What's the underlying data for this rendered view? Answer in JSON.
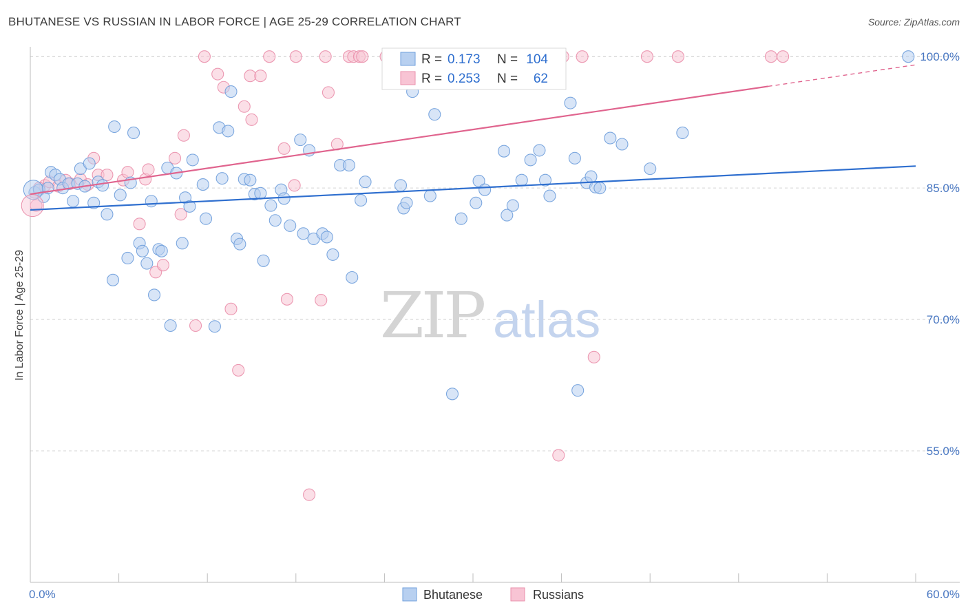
{
  "title": "BHUTANESE VS RUSSIAN IN LABOR FORCE | AGE 25-29 CORRELATION CHART",
  "source": "Source: ZipAtlas.com",
  "watermark": {
    "zip": "ZIP",
    "atlas": "atlas"
  },
  "colors": {
    "bhutanese_fill": "#b8d0f0",
    "bhutanese_stroke": "#6f9fdc",
    "bhutanese_line": "#2f6fcf",
    "russians_fill": "#f8c4d4",
    "russians_stroke": "#ea8fab",
    "russians_line": "#e0648e",
    "tick_text": "#4a78c2",
    "grid": "#d4d4d4"
  },
  "legend": {
    "rows": [
      {
        "r_label": "R =",
        "r_value": "0.173",
        "n_label": "N =",
        "n_value": "104"
      },
      {
        "r_label": "R =",
        "r_value": "0.253",
        "n_label": "N =",
        "n_value": "62"
      }
    ]
  },
  "chart_data": {
    "type": "scatter",
    "title": "BHUTANESE VS RUSSIAN IN LABOR FORCE | AGE 25-29 CORRELATION CHART",
    "xlabel": "",
    "ylabel": "In Labor Force | Age 25-29",
    "xlim": [
      0,
      60
    ],
    "ylim": [
      40,
      103
    ],
    "x_tick_labels": [
      "0.0%",
      "60.0%"
    ],
    "y_ticks": [
      55,
      70,
      85,
      100
    ],
    "y_tick_labels": [
      "55.0%",
      "70.0%",
      "85.0%",
      "100.0%"
    ],
    "grid": true,
    "legend_position": "top-center",
    "series": [
      {
        "name": "Bhutanese",
        "color": "#b8d0f0",
        "trend": {
          "x": [
            0,
            60
          ],
          "y": [
            82.5,
            87.5
          ]
        },
        "points": [
          [
            0.3,
            84.5
          ],
          [
            0.6,
            84.8
          ],
          [
            0.9,
            84.0
          ],
          [
            1.2,
            85.0
          ],
          [
            1.4,
            86.8
          ],
          [
            1.7,
            86.5
          ],
          [
            2.0,
            86.0
          ],
          [
            2.2,
            85.0
          ],
          [
            2.6,
            85.5
          ],
          [
            2.9,
            83.5
          ],
          [
            3.2,
            85.5
          ],
          [
            3.4,
            87.2
          ],
          [
            3.7,
            85.2
          ],
          [
            4.0,
            87.8
          ],
          [
            4.3,
            83.3
          ],
          [
            4.6,
            85.7
          ],
          [
            4.9,
            85.3
          ],
          [
            5.2,
            82.0
          ],
          [
            5.6,
            74.5
          ],
          [
            5.7,
            92.0
          ],
          [
            6.1,
            84.2
          ],
          [
            6.6,
            77.0
          ],
          [
            6.8,
            85.6
          ],
          [
            7.0,
            91.3
          ],
          [
            7.4,
            78.7
          ],
          [
            7.6,
            77.8
          ],
          [
            7.9,
            76.4
          ],
          [
            8.2,
            83.5
          ],
          [
            8.4,
            72.8
          ],
          [
            8.7,
            78.0
          ],
          [
            8.9,
            77.8
          ],
          [
            9.3,
            87.3
          ],
          [
            9.5,
            69.3
          ],
          [
            9.9,
            86.7
          ],
          [
            10.3,
            78.7
          ],
          [
            10.5,
            83.9
          ],
          [
            10.8,
            82.9
          ],
          [
            11.0,
            88.2
          ],
          [
            11.7,
            85.4
          ],
          [
            11.9,
            81.5
          ],
          [
            12.5,
            69.2
          ],
          [
            12.8,
            91.9
          ],
          [
            13.0,
            86.1
          ],
          [
            13.4,
            91.5
          ],
          [
            13.6,
            96.0
          ],
          [
            14.0,
            79.2
          ],
          [
            14.2,
            78.6
          ],
          [
            14.5,
            86.0
          ],
          [
            14.9,
            85.9
          ],
          [
            15.2,
            84.3
          ],
          [
            15.6,
            84.4
          ],
          [
            15.8,
            76.7
          ],
          [
            16.3,
            83.0
          ],
          [
            16.6,
            81.3
          ],
          [
            17.0,
            84.8
          ],
          [
            17.2,
            83.8
          ],
          [
            17.6,
            80.7
          ],
          [
            18.3,
            90.5
          ],
          [
            18.5,
            79.8
          ],
          [
            18.9,
            89.3
          ],
          [
            19.2,
            79.2
          ],
          [
            19.8,
            79.8
          ],
          [
            20.1,
            79.4
          ],
          [
            20.5,
            77.4
          ],
          [
            21.0,
            87.6
          ],
          [
            21.6,
            87.6
          ],
          [
            21.8,
            74.8
          ],
          [
            22.4,
            83.6
          ],
          [
            22.7,
            85.7
          ],
          [
            25.1,
            85.3
          ],
          [
            25.3,
            82.7
          ],
          [
            25.5,
            83.3
          ],
          [
            25.9,
            96.0
          ],
          [
            27.1,
            84.1
          ],
          [
            27.4,
            93.4
          ],
          [
            28.6,
            61.5
          ],
          [
            29.2,
            81.5
          ],
          [
            30.2,
            83.3
          ],
          [
            30.4,
            85.8
          ],
          [
            30.8,
            84.8
          ],
          [
            32.1,
            89.2
          ],
          [
            32.3,
            81.9
          ],
          [
            32.7,
            83.0
          ],
          [
            33.3,
            85.9
          ],
          [
            33.9,
            88.2
          ],
          [
            34.5,
            89.3
          ],
          [
            34.9,
            85.9
          ],
          [
            35.2,
            84.1
          ],
          [
            36.6,
            94.7
          ],
          [
            36.9,
            88.4
          ],
          [
            37.1,
            61.9
          ],
          [
            37.7,
            85.6
          ],
          [
            38.0,
            86.3
          ],
          [
            38.3,
            85.1
          ],
          [
            38.6,
            85.0
          ],
          [
            39.3,
            90.7
          ],
          [
            40.1,
            90.0
          ],
          [
            42.0,
            87.2
          ],
          [
            44.2,
            91.3
          ],
          [
            59.5,
            100.0
          ]
        ]
      },
      {
        "name": "Russians",
        "color": "#f8c4d4",
        "trend": {
          "x": [
            0,
            50
          ],
          "y": [
            84.3,
            96.6
          ]
        },
        "points": [
          [
            0.4,
            83.0
          ],
          [
            1.0,
            85.3
          ],
          [
            1.3,
            85.7
          ],
          [
            1.9,
            85.2
          ],
          [
            2.4,
            85.9
          ],
          [
            2.7,
            85.5
          ],
          [
            3.4,
            86.0
          ],
          [
            3.9,
            85.4
          ],
          [
            4.3,
            88.4
          ],
          [
            4.6,
            86.5
          ],
          [
            5.2,
            86.5
          ],
          [
            6.3,
            85.9
          ],
          [
            6.6,
            86.8
          ],
          [
            7.4,
            80.9
          ],
          [
            7.8,
            86.0
          ],
          [
            8.0,
            87.1
          ],
          [
            8.5,
            75.4
          ],
          [
            9.0,
            76.2
          ],
          [
            9.8,
            88.4
          ],
          [
            10.2,
            82.0
          ],
          [
            10.4,
            91.0
          ],
          [
            11.2,
            69.3
          ],
          [
            11.8,
            100.0
          ],
          [
            12.7,
            98.0
          ],
          [
            13.1,
            96.5
          ],
          [
            13.6,
            71.2
          ],
          [
            14.1,
            64.2
          ],
          [
            14.5,
            94.3
          ],
          [
            14.9,
            97.8
          ],
          [
            15.0,
            92.8
          ],
          [
            15.6,
            97.8
          ],
          [
            16.2,
            100.0
          ],
          [
            17.2,
            89.5
          ],
          [
            17.4,
            72.3
          ],
          [
            17.9,
            85.3
          ],
          [
            18.0,
            100.0
          ],
          [
            18.9,
            50.0
          ],
          [
            19.7,
            72.2
          ],
          [
            20.0,
            100.0
          ],
          [
            20.2,
            95.9
          ],
          [
            20.8,
            90.0
          ],
          [
            21.6,
            100.0
          ],
          [
            21.9,
            100.0
          ],
          [
            22.3,
            100.0
          ],
          [
            22.5,
            100.0
          ],
          [
            24.1,
            100.0
          ],
          [
            24.4,
            100.0
          ],
          [
            25.9,
            100.0
          ],
          [
            28.2,
            100.0
          ],
          [
            29.4,
            100.0
          ],
          [
            31.3,
            100.0
          ],
          [
            31.9,
            100.0
          ],
          [
            32.4,
            100.0
          ],
          [
            35.8,
            54.5
          ],
          [
            36.1,
            100.0
          ],
          [
            37.4,
            100.0
          ],
          [
            38.2,
            65.7
          ],
          [
            41.8,
            100.0
          ],
          [
            43.9,
            100.0
          ],
          [
            50.2,
            100.0
          ],
          [
            51.0,
            100.0
          ],
          [
            0.6,
            85.0
          ]
        ]
      }
    ]
  },
  "bottom_legend": {
    "items": [
      {
        "label": "Bhutanese"
      },
      {
        "label": "Russians"
      }
    ]
  }
}
